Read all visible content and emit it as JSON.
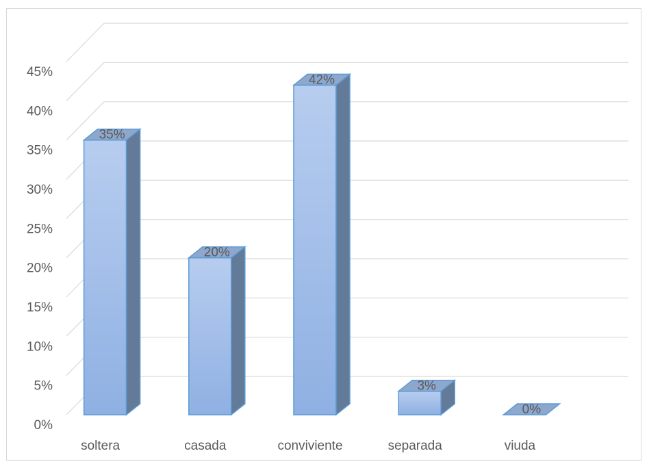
{
  "chart_data": {
    "type": "bar",
    "style": "3d-column",
    "categories": [
      "soltera",
      "casada",
      "conviviente",
      "separada",
      "viuda"
    ],
    "values": [
      35,
      20,
      42,
      3,
      0
    ],
    "data_labels": [
      "35%",
      "20%",
      "42%",
      "3%",
      "0%"
    ],
    "y_ticks": [
      "0%",
      "5%",
      "10%",
      "15%",
      "20%",
      "25%",
      "30%",
      "35%",
      "40%",
      "45%"
    ],
    "ylim": [
      0,
      45
    ],
    "y_unit": "%",
    "grid": true,
    "legend": "none",
    "colors": {
      "bar_front_top": "#b7cdef",
      "bar_front_bottom": "#8fb0e3",
      "bar_side": "#637a99",
      "bar_top": "#8ea7cc",
      "bar_edge": "#5b9bd5",
      "grid": "#d9d9d9",
      "text": "#595959"
    }
  }
}
